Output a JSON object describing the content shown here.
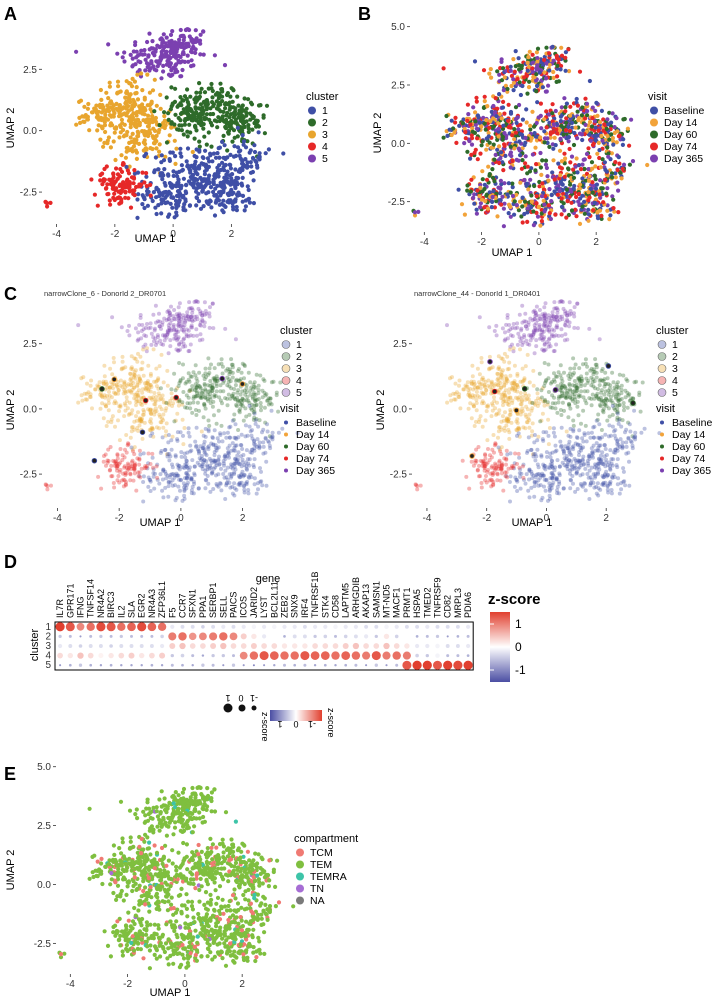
{
  "colors": {
    "cluster": [
      "#3f4fa6",
      "#2e6b2a",
      "#e8a52e",
      "#e62828",
      "#7b40b0"
    ],
    "visit": [
      "#3f4fa6",
      "#f2a33a",
      "#2e6b2a",
      "#e62828",
      "#7b40b0"
    ],
    "compartment": [
      "#f07a73",
      "#7fbf3f",
      "#3dc4a8",
      "#a66dd4",
      "#7a7a7a"
    ],
    "zscore_low": "#4b4ea3",
    "zscore_mid": "#ffffff",
    "zscore_high": "#e1402f"
  },
  "chart_data": [
    {
      "id": "A",
      "panel_label": "A",
      "type": "scatter",
      "xlabel": "UMAP 1",
      "ylabel": "UMAP 2",
      "xlim": [
        -4.5,
        3.6
      ],
      "ylim": [
        -3.8,
        4.1
      ],
      "xticks": [
        "-4",
        "-2",
        "0",
        "2"
      ],
      "yticks": [
        "-2.5",
        "0.0",
        "2.5"
      ],
      "legend_title": "cluster",
      "legend": [
        "1",
        "2",
        "3",
        "4",
        "5"
      ],
      "legend_position": "right"
    },
    {
      "id": "B",
      "panel_label": "B",
      "type": "scatter",
      "xlabel": "UMAP 1",
      "ylabel": "UMAP 2",
      "xlim": [
        -4.5,
        3.6
      ],
      "ylim": [
        -3.8,
        5.2
      ],
      "xticks": [
        "-4",
        "-2",
        "0",
        "2"
      ],
      "yticks": [
        "-2.5",
        "0.0",
        "2.5",
        "5.0"
      ],
      "legend_title": "visit",
      "legend": [
        "Baseline",
        "Day 14",
        "Day 60",
        "Day 74",
        "Day 365"
      ],
      "legend_position": "right"
    },
    {
      "id": "C1",
      "panel_label": "C",
      "type": "scatter",
      "subtitle": "narrowClone_6 - DonorId 2_DR0701",
      "xlabel": "UMAP 1",
      "ylabel": "UMAP 2",
      "xlim": [
        -4.5,
        3.6
      ],
      "ylim": [
        -3.8,
        4.1
      ],
      "xticks": [
        "-4",
        "-2",
        "0",
        "2"
      ],
      "yticks": [
        "-2.5",
        "0.0",
        "2.5"
      ],
      "legend_title": "cluster",
      "legend": [
        "1",
        "2",
        "3",
        "4",
        "5"
      ],
      "legend2_title": "visit",
      "legend2": [
        "Baseline",
        "Day 14",
        "Day 60",
        "Day 74",
        "Day 365"
      ]
    },
    {
      "id": "C2",
      "type": "scatter",
      "subtitle": "narrowClone_44 - DonorId 1_DR0401",
      "xlabel": "UMAP 1",
      "ylabel": "UMAP 2",
      "xlim": [
        -4.5,
        3.6
      ],
      "ylim": [
        -3.8,
        4.1
      ],
      "xticks": [
        "-4",
        "-2",
        "0",
        "2"
      ],
      "yticks": [
        "-2.5",
        "0.0",
        "2.5"
      ],
      "legend_title": "cluster",
      "legend": [
        "1",
        "2",
        "3",
        "4",
        "5"
      ],
      "legend2_title": "visit",
      "legend2": [
        "Baseline",
        "Day 14",
        "Day 60",
        "Day 74",
        "Day 365"
      ]
    },
    {
      "id": "D",
      "panel_label": "D",
      "type": "heatmap",
      "title": "gene",
      "ylabel": "cluster",
      "rows": [
        "1",
        "2",
        "3",
        "4",
        "5"
      ],
      "genes": [
        "IL7R",
        "GPR171",
        "IFNG",
        "TNFSF14",
        "NR4A2",
        "BIRC3",
        "IL2",
        "SLA",
        "EGR2",
        "NR4A3",
        "ZFP36L1",
        "F5",
        "CCR7",
        "SFXN1",
        "PPA1",
        "SERBP1",
        "SELL",
        "PAICS",
        "ICOS",
        "JARID2",
        "LYST",
        "BCL2L11",
        "ZEB2",
        "SNX9",
        "IRF4",
        "TNFRSF1B",
        "STK4",
        "CD58",
        "LAPTM5",
        "ARHGDIB",
        "AKAP13",
        "SAMSN1",
        "MT-ND5",
        "MACF1",
        "PRMT1",
        "HSPA5",
        "TMED2",
        "TNFRSF9",
        "CD82",
        "MRPL3",
        "PDIA6"
      ],
      "colorbar_title": "z-score",
      "colorbar_ticks": [
        "1",
        "0",
        "-1"
      ],
      "colorbar_range": [
        -2,
        2
      ],
      "size_legend_title": "z-score",
      "size_legend_ticks": [
        "-1",
        "0",
        "1"
      ],
      "mini_colorbar_title": "z-score",
      "mini_colorbar_ticks": [
        "-1",
        "0",
        "1"
      ],
      "z": [
        [
          1.6,
          1.4,
          1.0,
          1.2,
          1.5,
          1.4,
          1.2,
          1.3,
          1.5,
          1.3,
          1.2,
          -0.2,
          -0.3,
          -0.3,
          -0.4,
          -0.3,
          -0.2,
          -0.3,
          -0.2,
          -0.1,
          -0.2,
          -0.1,
          -0.2,
          -0.2,
          -0.3,
          -0.2,
          -0.2,
          -0.1,
          -0.2,
          -0.2,
          -0.3,
          -0.3,
          -0.1,
          -0.2,
          -0.3,
          -0.3,
          -0.2,
          -0.3,
          -0.3,
          -0.3,
          -0.2
        ],
        [
          -0.5,
          -0.6,
          -0.9,
          -0.6,
          -0.5,
          -0.6,
          -0.5,
          -0.6,
          -0.6,
          -0.6,
          -0.4,
          1.1,
          1.2,
          0.9,
          1.0,
          1.1,
          1.2,
          1.0,
          0.4,
          0.2,
          -0.2,
          0.0,
          -0.7,
          -0.3,
          -0.3,
          -0.5,
          -0.4,
          -0.6,
          -0.4,
          -0.3,
          -0.2,
          -0.5,
          0.2,
          -0.4,
          0.0,
          -0.7,
          -0.6,
          -0.5,
          -0.9,
          -0.7,
          -0.6
        ],
        [
          -0.2,
          -0.3,
          -0.4,
          -0.3,
          -0.3,
          -0.4,
          -0.3,
          -0.3,
          -0.3,
          -0.3,
          -0.2,
          0.4,
          0.5,
          0.3,
          0.3,
          0.4,
          0.5,
          0.3,
          0.3,
          0.4,
          0.3,
          0.3,
          0.2,
          0.2,
          0.2,
          0.3,
          0.3,
          0.3,
          0.4,
          0.5,
          0.3,
          0.3,
          0.5,
          0.3,
          0.2,
          -0.2,
          -0.2,
          -0.1,
          -0.3,
          -0.3,
          -0.2
        ],
        [
          0.3,
          0.2,
          0.5,
          0.3,
          0.1,
          0.2,
          0.3,
          0.4,
          0.2,
          0.3,
          0.4,
          -0.5,
          -0.4,
          -0.6,
          -0.8,
          -0.5,
          -0.5,
          -0.6,
          1.0,
          1.2,
          1.4,
          1.3,
          1.2,
          1.2,
          1.4,
          1.3,
          1.3,
          1.2,
          1.3,
          1.2,
          1.1,
          1.4,
          1.1,
          1.2,
          1.1,
          -0.4,
          -0.5,
          -0.1,
          -0.6,
          -0.6,
          -0.7
        ],
        [
          -0.9,
          -0.7,
          -0.5,
          -0.7,
          -0.8,
          -0.7,
          -0.8,
          -0.8,
          -0.8,
          -0.7,
          -0.8,
          -0.6,
          -0.7,
          -0.8,
          -0.5,
          -0.6,
          -0.9,
          -0.5,
          -0.9,
          -1.1,
          -0.9,
          -0.8,
          -0.6,
          -0.7,
          -0.6,
          -0.8,
          -0.7,
          -0.8,
          -0.7,
          -0.6,
          -0.9,
          -0.5,
          -0.9,
          -0.6,
          1.4,
          1.7,
          1.6,
          1.4,
          1.7,
          1.5,
          1.6
        ]
      ]
    },
    {
      "id": "E",
      "panel_label": "E",
      "type": "scatter",
      "xlabel": "UMAP 1",
      "ylabel": "UMAP 2",
      "xlim": [
        -4.5,
        3.6
      ],
      "ylim": [
        -3.8,
        5.2
      ],
      "xticks": [
        "-4",
        "-2",
        "0",
        "2"
      ],
      "yticks": [
        "-2.5",
        "0.0",
        "2.5",
        "5.0"
      ],
      "legend_title": "compartment",
      "legend": [
        "TCM",
        "TEM",
        "TEMRA",
        "TN",
        "NA"
      ],
      "legend_position": "right"
    }
  ]
}
